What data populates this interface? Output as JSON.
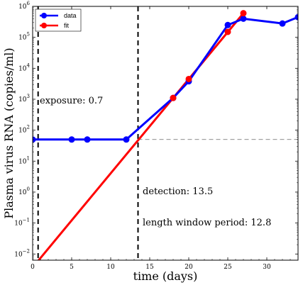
{
  "chart_data": {
    "type": "line",
    "xlabel": "time (days)",
    "ylabel": "Plasma virus RNA (copies/ml)",
    "xlim": [
      0,
      34
    ],
    "ylim_log10": [
      -2.2,
      6
    ],
    "yscale": "log",
    "x_ticks": [
      0,
      5,
      10,
      15,
      20,
      25,
      30
    ],
    "y_ticks_log10": [
      -2,
      -1,
      0,
      1,
      2,
      3,
      4,
      5,
      6
    ],
    "legend_position": "top-left",
    "series": [
      {
        "name": "data",
        "color": "#0000ff",
        "x": [
          0,
          5,
          7,
          12,
          18,
          20,
          25,
          27,
          32,
          34
        ],
        "y": [
          50,
          50,
          50,
          50,
          1100,
          3800,
          250000,
          400000,
          280000,
          450000
        ]
      },
      {
        "name": "fit",
        "color": "#ff0000",
        "line_x": [
          0.7,
          27
        ],
        "line_y": [
          0.006,
          600000
        ],
        "marker_x": [
          18,
          20,
          25,
          27
        ],
        "marker_y": [
          1100,
          4500,
          150000,
          600000
        ]
      }
    ],
    "vlines": [
      {
        "x": 0.7,
        "style": "dashed",
        "color": "#000000"
      },
      {
        "x": 13.5,
        "style": "dashed",
        "color": "#000000"
      }
    ],
    "hline": {
      "y": 50,
      "style": "dashed",
      "color": "#666666"
    },
    "annotations": {
      "exposure": "exposure: 0.7",
      "detection": "detection: 13.5",
      "window": "length window period: 12.8"
    },
    "tick_labels_x": [
      "0",
      "5",
      "10",
      "15",
      "20",
      "25",
      "30"
    ],
    "tick_base": "10"
  }
}
